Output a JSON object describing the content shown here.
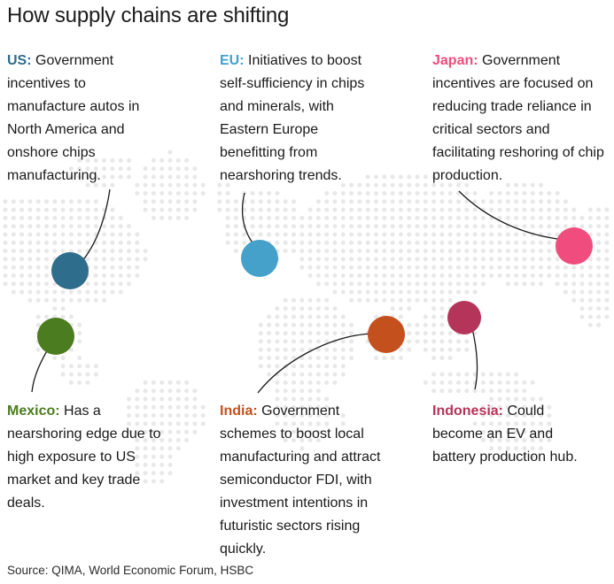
{
  "title": "How supply chains are shifting",
  "source": "Source: QIMA, World Economic Forum, HSBC",
  "map": {
    "dot_color": "#e8e8e8",
    "connector_color": "#1a1a1a",
    "background": "#ffffff"
  },
  "regions": [
    {
      "id": "us",
      "label": "US:",
      "color": "#2f6d8c",
      "text": "Government incentives to manufacture autos in North America and onshore chips manufacturing."
    },
    {
      "id": "eu",
      "label": "EU:",
      "color": "#45a1ca",
      "text": "Initiatives to boost self-sufficiency in chips and minerals, with Eastern Europe benefitting from nearshoring trends."
    },
    {
      "id": "japan",
      "label": "Japan:",
      "color": "#f04c7d",
      "text": "Government incentives are focused on reducing trade reliance in critical sectors and facilitating reshoring of chip production."
    },
    {
      "id": "mexico",
      "label": "Mexico:",
      "color": "#4c7c20",
      "text": "Has a nearshoring edge due to high exposure to US market and key trade deals."
    },
    {
      "id": "india",
      "label": "India:",
      "color": "#c4501d",
      "text": "Government schemes to boost local manufacturing and attract semiconductor FDI, with investment intentions in futuristic sectors rising quickly."
    },
    {
      "id": "indonesia",
      "label": "Indonesia:",
      "color": "#b53459",
      "text": "Could become an EV and battery production hub."
    }
  ]
}
